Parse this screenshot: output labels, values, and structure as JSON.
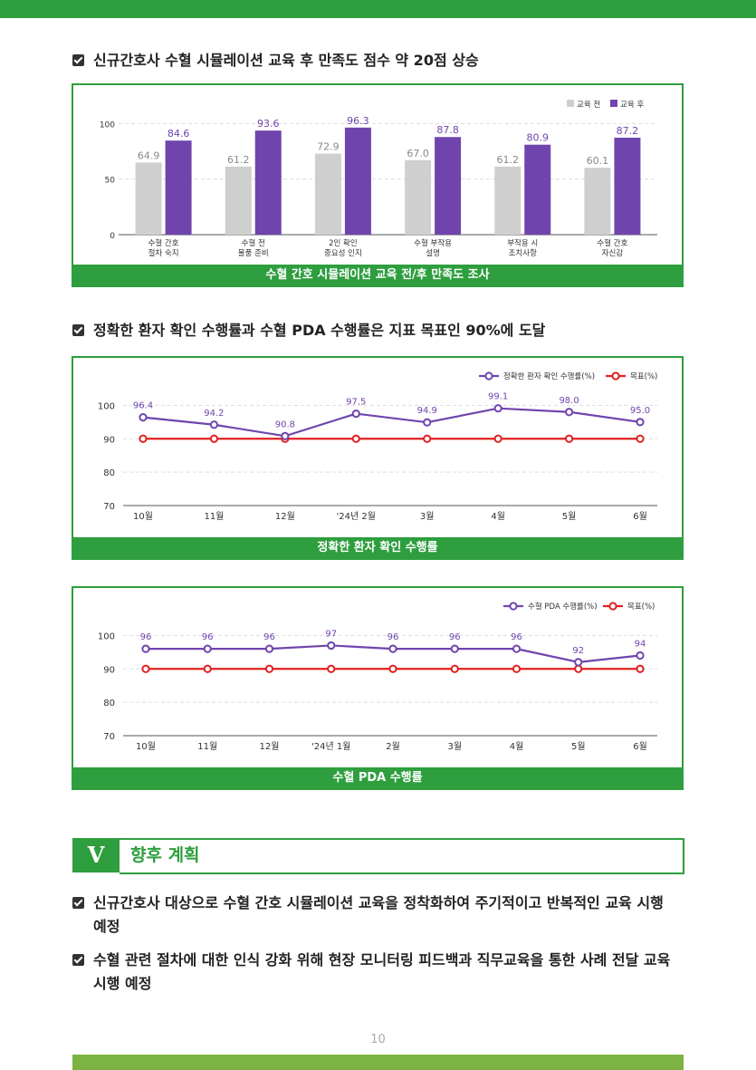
{
  "headings": {
    "h1": "신규간호사 수혈 시뮬레이션 교육 후 만족도 점수 약 20점 상승",
    "h2": "정확한 환자 확인 수행률과 수혈 PDA 수행률은 지표 목표인 90%에 도달"
  },
  "chart_data": [
    {
      "type": "bar",
      "caption": "수혈 간호 시뮬레이션 교육 전/후 만족도 조사",
      "categories": [
        [
          "수혈 간호",
          "절차 숙지"
        ],
        [
          "수혈 전",
          "물품 준비"
        ],
        [
          "2인 확인",
          "중요성 인지"
        ],
        [
          "수혈 부작용",
          "설명"
        ],
        [
          "부작용 시",
          "조치사항"
        ],
        [
          "수혈 간호",
          "자신감"
        ]
      ],
      "series": [
        {
          "name": "교육 전",
          "color": "#cfcfcf",
          "label_color": "#888888",
          "values": [
            64.9,
            61.2,
            72.9,
            67.0,
            61.2,
            60.1
          ]
        },
        {
          "name": "교육 후",
          "color": "#6f45ad",
          "label_color": "#6f45ad",
          "values": [
            84.6,
            93.6,
            96.3,
            87.8,
            80.9,
            87.2
          ]
        }
      ],
      "yticks": [
        0,
        50,
        100
      ],
      "ylim": [
        0,
        110
      ],
      "legend": "top-right"
    },
    {
      "type": "line",
      "caption": "정확한 환자 확인 수행률",
      "categories": [
        "10월",
        "11월",
        "12월",
        "'24년 2월",
        "3월",
        "4월",
        "5월",
        "6월"
      ],
      "series": [
        {
          "name": "정확한 환자 확인 수행률(%)",
          "color": "#6f45ad",
          "values": [
            96.4,
            94.2,
            90.8,
            97.5,
            94.9,
            99.1,
            98.0,
            95.0
          ],
          "labels": [
            "96.4",
            "94.2",
            "90.8",
            "97.5",
            "94.9",
            "99.1",
            "98.0",
            "95.0"
          ]
        },
        {
          "name": "목표(%)",
          "color": "#e02020",
          "values": [
            90,
            90,
            90,
            90,
            90,
            90,
            90,
            90
          ]
        }
      ],
      "yticks": [
        70,
        80,
        90,
        100
      ],
      "ylim": [
        70,
        102
      ],
      "legend": "top-right"
    },
    {
      "type": "line",
      "caption": "수혈 PDA 수행률",
      "categories": [
        "10월",
        "11월",
        "12월",
        "'24년 1월",
        "2월",
        "3월",
        "4월",
        "5월",
        "6월"
      ],
      "series": [
        {
          "name": "수혈 PDA 수행률(%)",
          "color": "#6f45ad",
          "values": [
            96,
            96,
            96,
            97,
            96,
            96,
            96,
            92,
            94
          ],
          "labels": [
            "96",
            "96",
            "96",
            "97",
            "96",
            "96",
            "96",
            "92",
            "94"
          ]
        },
        {
          "name": "목표(%)",
          "color": "#e02020",
          "values": [
            90,
            90,
            90,
            90,
            90,
            90,
            90,
            90,
            90
          ]
        }
      ],
      "yticks": [
        70,
        80,
        90,
        100
      ],
      "ylim": [
        70,
        102
      ],
      "legend": "top-right"
    }
  ],
  "section": {
    "number": "V",
    "title": "향후 계획"
  },
  "plans": {
    "p1_line1": "신규간호사 대상으로 수혈 간호 시뮬레이션 교육을 정착화하여 주기적이고 반복적인 교육 시행",
    "p1_line2": "예정",
    "p2_line1": "수혈 관련 절차에 대한 인식 강화 위해 현장 모니터링 피드백과 직무교육을 통한 사례 전달 교육",
    "p2_line2": "시행 예정"
  },
  "page_number": "10"
}
